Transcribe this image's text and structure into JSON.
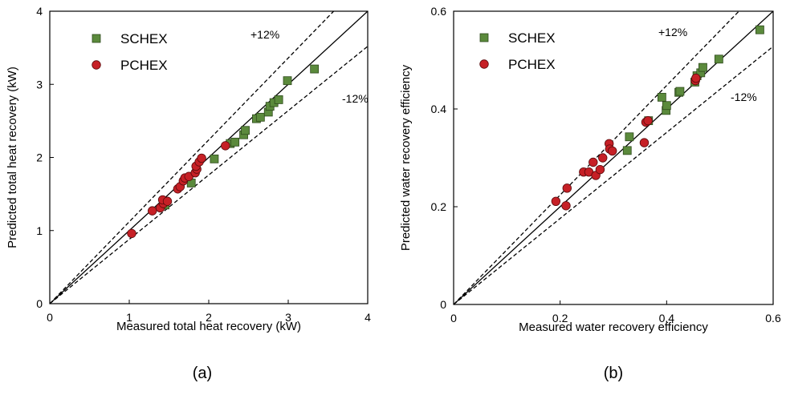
{
  "chart_data": [
    {
      "type": "scatter",
      "panel_label": "(a)",
      "xlabel": "Measured total heat recovery (kW)",
      "ylabel": "Predicted total heat recovery (kW)",
      "xlim": [
        0,
        4
      ],
      "ylim": [
        0,
        4
      ],
      "xticks": [
        0,
        1,
        2,
        3,
        4
      ],
      "yticks": [
        0,
        1,
        2,
        3,
        4
      ],
      "tick_labels_x": [
        "0",
        "1",
        "2",
        "3",
        "4"
      ],
      "tick_labels_y": [
        "0",
        "1",
        "2",
        "3",
        "4"
      ],
      "legend_placement": "top-left",
      "upper_bound_label": "+12%",
      "lower_bound_label": "-12%",
      "upper_bound_factor": 1.12,
      "lower_bound_factor": 0.88,
      "series": [
        {
          "name": "SCHEX",
          "marker": "square",
          "color": "#5b8a3c",
          "points": [
            [
              1.45,
              1.35
            ],
            [
              1.78,
              1.65
            ],
            [
              2.07,
              1.98
            ],
            [
              2.27,
              2.19
            ],
            [
              2.33,
              2.21
            ],
            [
              2.44,
              2.31
            ],
            [
              2.46,
              2.37
            ],
            [
              2.6,
              2.53
            ],
            [
              2.65,
              2.55
            ],
            [
              2.75,
              2.62
            ],
            [
              2.77,
              2.7
            ],
            [
              2.82,
              2.75
            ],
            [
              2.88,
              2.79
            ],
            [
              2.99,
              3.05
            ],
            [
              3.33,
              3.21
            ]
          ]
        },
        {
          "name": "PCHEX",
          "marker": "circle",
          "color": "#c62026",
          "points": [
            [
              1.03,
              0.96
            ],
            [
              1.29,
              1.27
            ],
            [
              1.39,
              1.31
            ],
            [
              1.43,
              1.37
            ],
            [
              1.42,
              1.42
            ],
            [
              1.48,
              1.4
            ],
            [
              1.61,
              1.57
            ],
            [
              1.64,
              1.6
            ],
            [
              1.68,
              1.68
            ],
            [
              1.7,
              1.72
            ],
            [
              1.75,
              1.74
            ],
            [
              1.83,
              1.79
            ],
            [
              1.85,
              1.84
            ],
            [
              1.84,
              1.88
            ],
            [
              1.88,
              1.94
            ],
            [
              1.91,
              1.99
            ],
            [
              2.21,
              2.16
            ]
          ]
        }
      ]
    },
    {
      "type": "scatter",
      "panel_label": "(b)",
      "xlabel": "Measured water recovery efficiency",
      "ylabel": "Predicted water recovery efficiency",
      "xlim": [
        0,
        0.6
      ],
      "ylim": [
        0,
        0.6
      ],
      "xticks": [
        0,
        0.2,
        0.4,
        0.6
      ],
      "yticks": [
        0,
        0.2,
        0.4,
        0.6
      ],
      "tick_labels_x": [
        "0",
        "0.2",
        "0.4",
        "0.6"
      ],
      "tick_labels_y": [
        "0",
        "0.2",
        "0.4",
        "0.6"
      ],
      "legend_placement": "top-left",
      "upper_bound_label": "+12%",
      "lower_bound_label": "-12%",
      "upper_bound_factor": 1.12,
      "lower_bound_factor": 0.88,
      "series": [
        {
          "name": "SCHEX",
          "marker": "square",
          "color": "#5b8a3c",
          "points": [
            [
              0.326,
              0.315
            ],
            [
              0.33,
              0.343
            ],
            [
              0.366,
              0.376
            ],
            [
              0.391,
              0.424
            ],
            [
              0.399,
              0.397
            ],
            [
              0.4,
              0.407
            ],
            [
              0.423,
              0.434
            ],
            [
              0.425,
              0.436
            ],
            [
              0.453,
              0.455
            ],
            [
              0.457,
              0.468
            ],
            [
              0.464,
              0.474
            ],
            [
              0.468,
              0.485
            ],
            [
              0.498,
              0.502
            ],
            [
              0.575,
              0.562
            ]
          ]
        },
        {
          "name": "PCHEX",
          "marker": "circle",
          "color": "#c62026",
          "points": [
            [
              0.192,
              0.211
            ],
            [
              0.211,
              0.202
            ],
            [
              0.213,
              0.238
            ],
            [
              0.244,
              0.271
            ],
            [
              0.254,
              0.271
            ],
            [
              0.262,
              0.291
            ],
            [
              0.267,
              0.264
            ],
            [
              0.275,
              0.276
            ],
            [
              0.28,
              0.3
            ],
            [
              0.292,
              0.329
            ],
            [
              0.293,
              0.318
            ],
            [
              0.298,
              0.314
            ],
            [
              0.358,
              0.331
            ],
            [
              0.361,
              0.373
            ],
            [
              0.365,
              0.376
            ],
            [
              0.454,
              0.458
            ],
            [
              0.455,
              0.463
            ]
          ]
        }
      ]
    }
  ]
}
